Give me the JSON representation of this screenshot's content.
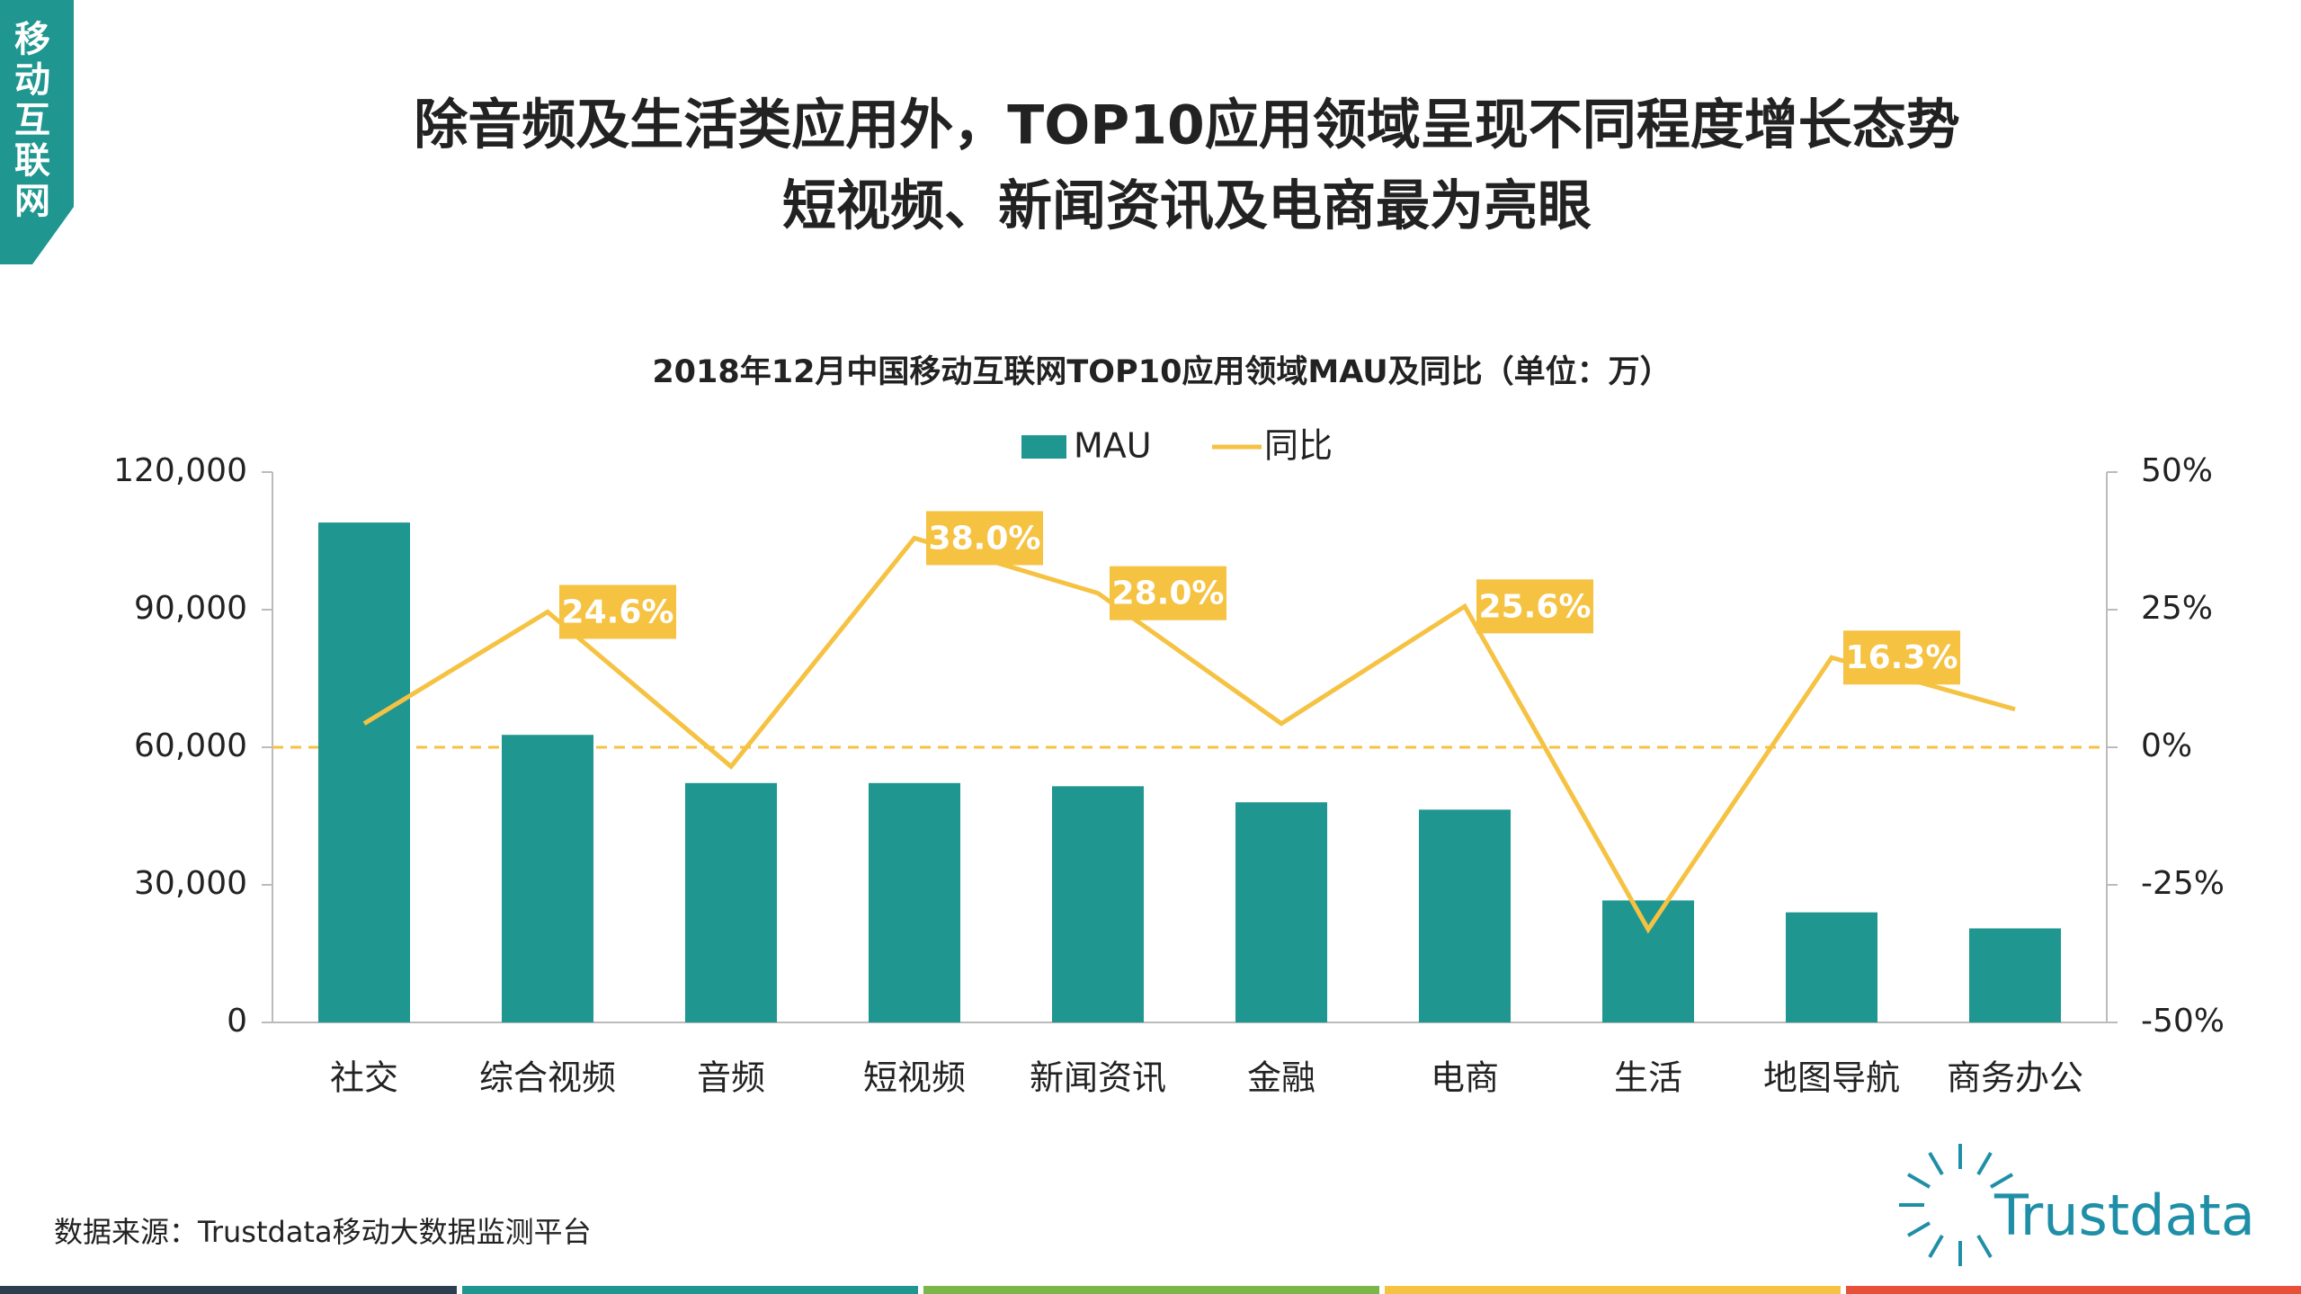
{
  "header": {
    "tag": "移动互联网",
    "title_line1": "除音频及生活类应用外，TOP10应用领域呈现不同程度增长态势",
    "title_line2": "短视频、新闻资讯及电商最为亮眼"
  },
  "chart_data": {
    "type": "bar_line",
    "title": "2018年12月中国移动互联网TOP10应用领域MAU及同比（单位：万）",
    "categories": [
      "社交",
      "综合视频",
      "音频",
      "短视频",
      "新闻资讯",
      "金融",
      "电商",
      "生活",
      "地图导航",
      "商务办公"
    ],
    "series": [
      {
        "name": "MAU",
        "type": "bar",
        "color": "#1f9690",
        "values": [
          109000,
          62700,
          52200,
          52200,
          51500,
          48000,
          46400,
          26600,
          24000,
          20500
        ]
      },
      {
        "name": "同比",
        "type": "line",
        "axis": "y2",
        "color": "#f5c242",
        "values": [
          4.3,
          24.6,
          -3.5,
          38.0,
          28.0,
          4.3,
          25.6,
          -33.1,
          16.3,
          6.9
        ],
        "value_labels": [
          null,
          "24.6%",
          null,
          "38.0%",
          "28.0%",
          null,
          "25.6%",
          null,
          "16.3%",
          null
        ]
      }
    ],
    "ylim": [
      0,
      120000
    ],
    "yticks": [
      0,
      {
        "value": 30000,
        "label": "30,000"
      },
      {
        "value": 60000,
        "label": "60,000"
      },
      {
        "value": 90000,
        "label": "90,000"
      },
      {
        "value": 120000,
        "label": "120,000"
      }
    ],
    "y2lim": [
      -50,
      50
    ],
    "y2ticks": [
      {
        "value": -50,
        "label": "-50%"
      },
      {
        "value": -25,
        "label": "-25%"
      },
      {
        "value": 0,
        "label": "0%"
      },
      {
        "value": 25,
        "label": "25%"
      },
      {
        "value": 50,
        "label": "50%"
      }
    ],
    "zero_line": true,
    "legend": "top"
  },
  "footer": {
    "source": "数据来源：Trustdata移动大数据监测平台",
    "logo": "Trustdata"
  }
}
